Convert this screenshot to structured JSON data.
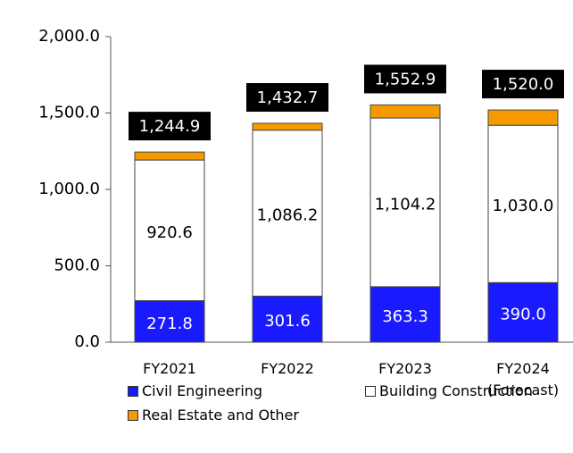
{
  "chart_data": {
    "type": "stacked_bar",
    "categories": [
      "FY2021",
      "FY2022",
      "FY2023",
      "FY2024\n(Forecast)"
    ],
    "series": [
      {
        "name": "Civil Engineering",
        "color": "#1a1aff",
        "values": [
          271.8,
          301.6,
          363.3,
          390.0
        ],
        "value_labels": [
          "271.8",
          "301.6",
          "363.3",
          "390.0"
        ]
      },
      {
        "name": "Building Construction",
        "color": "#ffffff",
        "values": [
          920.6,
          1086.2,
          1104.2,
          1030.0
        ],
        "value_labels": [
          "920.6",
          "1,086.2",
          "1,104.2",
          "1,030.0"
        ]
      },
      {
        "name": "Real Estate and Other",
        "color": "#f59b00",
        "values": [
          52.5,
          44.9,
          85.4,
          100.0
        ]
      }
    ],
    "totals": {
      "values": [
        1244.9,
        1432.7,
        1552.9,
        1520.0
      ],
      "value_labels": [
        "1,244.9",
        "1,432.7",
        "1,552.9",
        "1,520.0"
      ]
    },
    "ylim": [
      0,
      2000
    ],
    "yticks": [
      {
        "value": 0,
        "label": "0.0"
      },
      {
        "value": 500,
        "label": "500.0"
      },
      {
        "value": 1000,
        "label": "1,000.0"
      },
      {
        "value": 1500,
        "label": "1,500.0"
      },
      {
        "value": 2000,
        "label": "2,000.0"
      }
    ]
  }
}
